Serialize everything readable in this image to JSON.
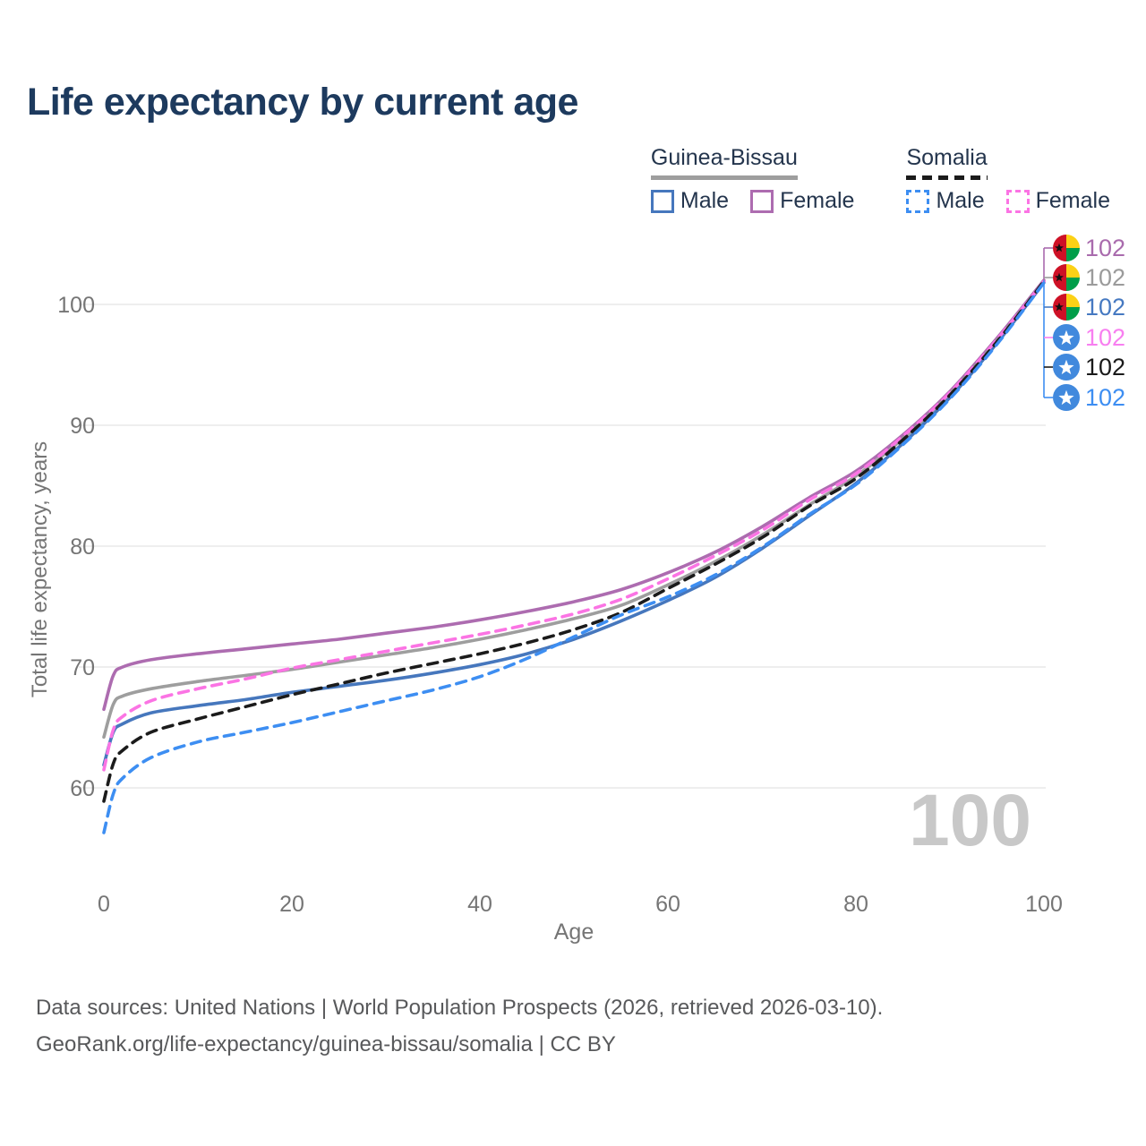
{
  "title": "Life expectancy by current age",
  "legend": {
    "groups": [
      {
        "name": "Guinea-Bissau",
        "underline_color": "#9e9e9e",
        "underline_style": "solid",
        "items": [
          {
            "label": "Male",
            "color": "#4677bd",
            "swatch_style": "solid"
          },
          {
            "label": "Female",
            "color": "#ad6cb0",
            "swatch_style": "solid"
          }
        ]
      },
      {
        "name": "Somalia",
        "underline_color": "#1b1b1b",
        "underline_style": "dashed",
        "items": [
          {
            "label": "Male",
            "color": "#3d8ef2",
            "swatch_style": "dashed"
          },
          {
            "label": "Female",
            "color": "#fb74e4",
            "swatch_style": "dashed"
          }
        ]
      }
    ]
  },
  "chart_data": {
    "type": "line",
    "title": "Life expectancy by current age",
    "xlabel": "Age",
    "ylabel": "Total life expectancy, years",
    "xticks": [
      0,
      20,
      40,
      60,
      80,
      100
    ],
    "yticks": [
      60,
      70,
      80,
      90,
      100
    ],
    "xlim": [
      0,
      100
    ],
    "ylim": [
      55,
      105
    ],
    "grid": true,
    "watermark": "100",
    "x_ages": [
      0,
      1,
      2,
      5,
      10,
      15,
      20,
      25,
      30,
      35,
      40,
      45,
      50,
      55,
      60,
      65,
      70,
      75,
      80,
      85,
      90,
      95,
      100
    ],
    "series": [
      {
        "name": "Guinea-Bissau Female",
        "color": "#ad6cb0",
        "dash": "solid",
        "values": [
          66.5,
          69.3,
          70.0,
          70.6,
          71.1,
          71.5,
          71.9,
          72.3,
          72.8,
          73.3,
          73.9,
          74.6,
          75.4,
          76.4,
          77.8,
          79.5,
          81.6,
          84.0,
          86.2,
          89.2,
          92.8,
          97.2,
          102.0
        ],
        "end_label": "102"
      },
      {
        "name": "Guinea-Bissau Both sexes",
        "color": "#9e9e9e",
        "dash": "solid",
        "values": [
          64.2,
          66.9,
          67.6,
          68.2,
          68.8,
          69.3,
          69.8,
          70.4,
          71.0,
          71.6,
          72.3,
          73.1,
          74.0,
          75.1,
          76.8,
          78.7,
          80.9,
          83.4,
          85.8,
          88.9,
          92.6,
          97.0,
          101.9
        ],
        "end_label": "102"
      },
      {
        "name": "Guinea-Bissau Male",
        "color": "#4677bd",
        "dash": "solid",
        "values": [
          61.9,
          64.6,
          65.3,
          66.2,
          66.8,
          67.3,
          67.9,
          68.4,
          68.9,
          69.5,
          70.2,
          71.1,
          72.3,
          73.8,
          75.5,
          77.4,
          79.8,
          82.5,
          85.2,
          88.5,
          92.3,
          96.8,
          101.8
        ],
        "end_label": "102"
      },
      {
        "name": "Somalia Female",
        "color": "#fb74e4",
        "dash": "dashed",
        "values": [
          61.5,
          64.8,
          65.9,
          67.2,
          68.2,
          69.0,
          69.9,
          70.6,
          71.3,
          72.0,
          72.7,
          73.5,
          74.4,
          75.6,
          77.3,
          79.2,
          81.3,
          83.8,
          86.0,
          89.1,
          92.7,
          97.1,
          101.9
        ],
        "end_label": "102"
      },
      {
        "name": "Somalia Both sexes",
        "color": "#1b1b1b",
        "dash": "dashed",
        "values": [
          58.9,
          62.0,
          63.1,
          64.6,
          65.7,
          66.7,
          67.7,
          68.6,
          69.5,
          70.3,
          71.1,
          72.0,
          73.1,
          74.5,
          76.5,
          78.5,
          80.7,
          83.3,
          85.6,
          88.8,
          92.5,
          96.9,
          101.9
        ],
        "end_label": "102"
      },
      {
        "name": "Somalia Male",
        "color": "#3d8ef2",
        "dash": "dashed",
        "values": [
          56.3,
          59.5,
          60.8,
          62.5,
          63.8,
          64.6,
          65.4,
          66.3,
          67.2,
          68.1,
          69.2,
          70.7,
          72.5,
          74.3,
          75.8,
          77.6,
          79.9,
          82.6,
          85.1,
          88.4,
          92.2,
          96.7,
          101.8
        ],
        "end_label": "102"
      }
    ]
  },
  "annotations": {
    "rows": [
      {
        "flag": "guinea-bissau",
        "value": "102",
        "color": "#a96bad"
      },
      {
        "flag": "guinea-bissau",
        "value": "102",
        "color": "#9b9b9b"
      },
      {
        "flag": "guinea-bissau",
        "value": "102",
        "color": "#4679c1"
      },
      {
        "flag": "somalia",
        "value": "102",
        "color": "#f87ff0"
      },
      {
        "flag": "somalia",
        "value": "102",
        "color": "#1a1a1a"
      },
      {
        "flag": "somalia",
        "value": "102",
        "color": "#3d8ef2"
      }
    ]
  },
  "flag_colors": {
    "guinea_bissau_red": "#ce1126",
    "guinea_bissau_yellow": "#fcd116",
    "guinea_bissau_green": "#009e49",
    "somalia_blue": "#4189dd"
  },
  "footer": {
    "line1": "Data sources: United Nations | World Population Prospects (2026, retrieved 2026-03-10).",
    "line2": "GeoRank.org/life-expectancy/guinea-bissau/somalia | CC BY"
  }
}
